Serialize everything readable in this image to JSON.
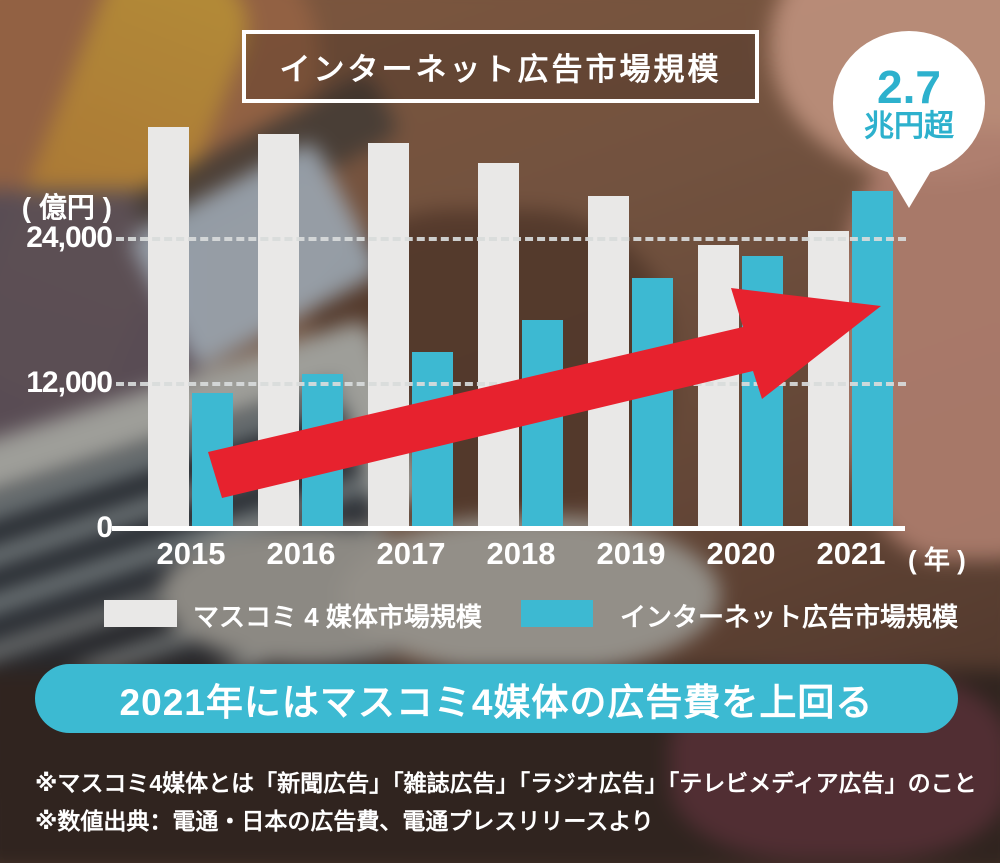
{
  "title": "インターネット広告市場規模",
  "badge": {
    "line1": "2.7",
    "line2": "兆円超"
  },
  "y_axis": {
    "unit": "( 億円 )"
  },
  "x_axis": {
    "unit": "( 年 )"
  },
  "legend": [
    {
      "label": "マスコミ 4 媒体市場規模",
      "color": "#e9e8e7"
    },
    {
      "label": "インターネット広告市場規模",
      "color": "#3db9d2"
    }
  ],
  "banner": "2021年にはマスコミ4媒体の広告費を上回る",
  "notes": [
    "※マスコミ4媒体とは「新聞広告」「雑誌広告」「ラジオ広告」「テレビメディア広告」のこと",
    "※数値出典：電通・日本の広告費、電通プレスリリースより"
  ],
  "colors": {
    "bar_mass_media": "#e9e8e7",
    "bar_internet": "#3db9d2",
    "arrow_red": "#e7222e",
    "banner_cyan": "#3cbad2",
    "badge_text_cyan": "#2db1cd",
    "text_white": "#ffffff"
  },
  "chart_data": {
    "type": "bar",
    "title": "インターネット広告市場規模",
    "categories": [
      "2015",
      "2016",
      "2017",
      "2018",
      "2019",
      "2020",
      "2021"
    ],
    "series": [
      {
        "name": "マスコミ4媒体市場規模",
        "color": "#e9e8e7",
        "values": [
          33250,
          32700,
          31950,
          30300,
          27550,
          23500,
          24650
        ]
      },
      {
        "name": "インターネット広告市場規模",
        "color": "#3db9d2",
        "values": [
          11250,
          12850,
          14650,
          17300,
          20750,
          22600,
          27950
        ]
      }
    ],
    "ylabel": "(億円)",
    "xlabel": "(年)",
    "ylim": [
      0,
      34000
    ],
    "y_ticks": [
      {
        "value": 24000,
        "label": "24,000"
      },
      {
        "value": 12000,
        "label": "12,000"
      },
      {
        "value": 0,
        "label": "0"
      }
    ],
    "gridline_values": [
      24000,
      12000
    ],
    "grid": "dashed horizontal",
    "legend_position": "bottom",
    "annotation": "2021年 インターネット広告 2.7兆円超",
    "values_note": "values estimated from gridlines (億円)"
  }
}
